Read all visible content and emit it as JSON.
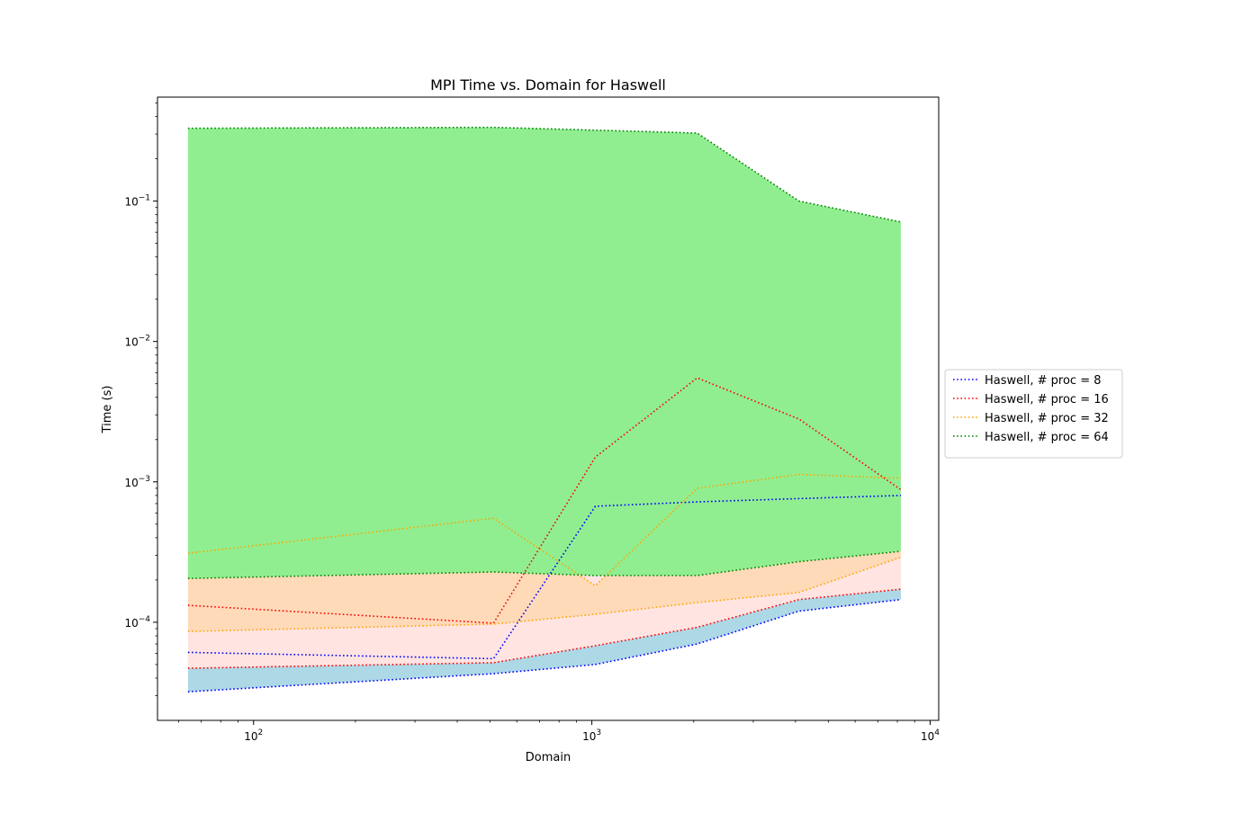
{
  "chart_data": {
    "type": "line",
    "title": "MPI Time vs. Domain for Haswell",
    "xlabel": "Domain",
    "ylabel": "Time (s)",
    "xscale": "log",
    "yscale": "log",
    "xlim": [
      52,
      10600
    ],
    "ylim": [
      2e-05,
      0.55
    ],
    "x_ticks": [
      {
        "value": 100,
        "base": "10",
        "exp": "2"
      },
      {
        "value": 1000,
        "base": "10",
        "exp": "3"
      },
      {
        "value": 10000,
        "base": "10",
        "exp": "4"
      }
    ],
    "y_ticks": [
      {
        "value": 0.0001,
        "base": "10",
        "exp": "−4"
      },
      {
        "value": 0.001,
        "base": "10",
        "exp": "−3"
      },
      {
        "value": 0.01,
        "base": "10",
        "exp": "−2"
      },
      {
        "value": 0.1,
        "base": "10",
        "exp": "−1"
      }
    ],
    "grid": false,
    "legend_position": "outside-right",
    "x": [
      64,
      512,
      1024,
      2048,
      4096,
      8192
    ],
    "series": [
      {
        "name": "Haswell, # proc = 8",
        "color": "#0000ff",
        "fill_color": "#add8e6",
        "max": [
          6.1e-05,
          5.5e-05,
          0.00067,
          0.00072,
          0.00076,
          0.0008
        ],
        "min": [
          3.2e-05,
          4.3e-05,
          5e-05,
          7e-05,
          0.00012,
          0.000145
        ]
      },
      {
        "name": "Haswell, # proc = 16",
        "color": "#ff0000",
        "fill_color": "#ffe4e1",
        "max": [
          0.000132,
          9.85e-05,
          0.0015,
          0.0055,
          0.0028,
          0.00088
        ],
        "min": [
          4.7e-05,
          5.15e-05,
          6.8e-05,
          9.2e-05,
          0.000145,
          0.000172
        ]
      },
      {
        "name": "Haswell, # proc = 32",
        "color": "#ffa500",
        "fill_color": "#ffdab9",
        "max": [
          0.00031,
          0.00055,
          0.000182,
          0.0009,
          0.00113,
          0.00106
        ],
        "min": [
          8.6e-05,
          9.7e-05,
          0.000114,
          0.000138,
          0.000163,
          0.00029
        ]
      },
      {
        "name": "Haswell, # proc = 64",
        "color": "#008000",
        "fill_color": "#90ee90",
        "max": [
          0.33,
          0.335,
          0.32,
          0.305,
          0.1,
          0.071
        ],
        "min": [
          0.000205,
          0.000228,
          0.000215,
          0.000215,
          0.00027,
          0.00032
        ]
      }
    ]
  }
}
